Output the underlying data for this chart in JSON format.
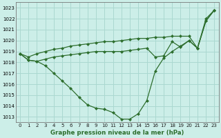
{
  "title": "Graphe pression niveau de la mer (hPa)",
  "background_color": "#cceee8",
  "grid_color": "#aad8d0",
  "line_color": "#2d6e2d",
  "x_labels": [
    "0",
    "1",
    "2",
    "3",
    "4",
    "5",
    "6",
    "7",
    "8",
    "9",
    "10",
    "11",
    "12",
    "13",
    "14",
    "15",
    "16",
    "17",
    "18",
    "19",
    "20",
    "21",
    "22",
    "23"
  ],
  "ylim": [
    1012.5,
    1023.5
  ],
  "yticks": [
    1013,
    1014,
    1015,
    1016,
    1017,
    1018,
    1019,
    1020,
    1021,
    1022,
    1023
  ],
  "line1": [
    1018.8,
    1018.2,
    1018.1,
    1017.7,
    1017.0,
    1016.3,
    1015.6,
    1014.8,
    1014.1,
    1013.8,
    1013.7,
    1013.4,
    1012.8,
    1012.8,
    1013.3,
    1014.5,
    1017.2,
    1018.4,
    1019.0,
    1019.5,
    1020.0,
    1019.3,
    1022.0,
    1022.8
  ],
  "line2": [
    1018.8,
    1018.2,
    1018.1,
    1018.3,
    1018.5,
    1018.6,
    1018.7,
    1018.8,
    1018.9,
    1019.0,
    1019.0,
    1019.0,
    1019.0,
    1019.1,
    1019.2,
    1019.3,
    1018.5,
    1018.6,
    1019.9,
    1019.4,
    1020.0,
    1019.3,
    1021.8,
    1022.8
  ],
  "line3": [
    1018.8,
    1018.5,
    1018.8,
    1019.0,
    1019.2,
    1019.3,
    1019.5,
    1019.6,
    1019.7,
    1019.8,
    1019.9,
    1019.9,
    1020.0,
    1020.1,
    1020.2,
    1020.2,
    1020.3,
    1020.3,
    1020.4,
    1020.4,
    1020.4,
    1019.3,
    1021.8,
    1022.8
  ]
}
